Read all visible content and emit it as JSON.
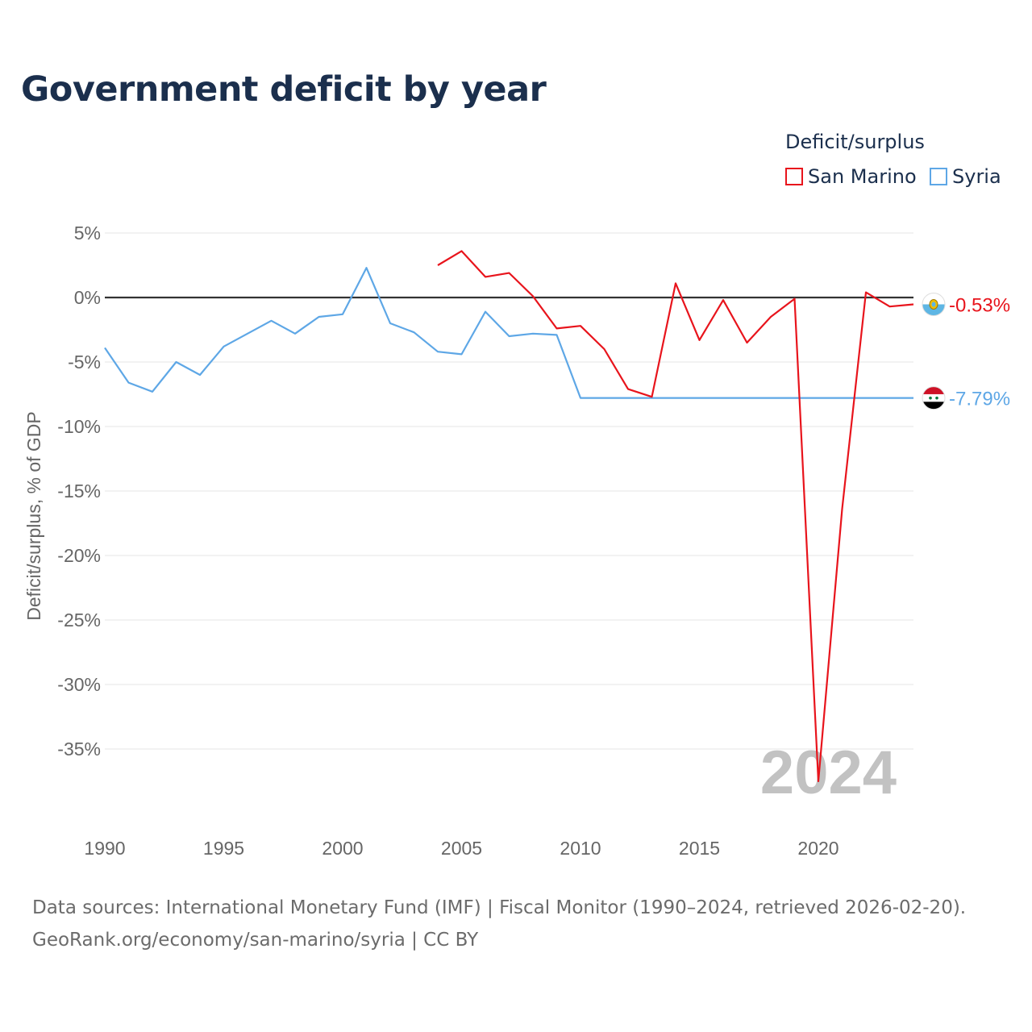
{
  "chart_data": {
    "type": "line",
    "title": "Government deficit by year",
    "ylabel": "Deficit/surplus, % of GDP",
    "xlabel": "",
    "xlim": [
      1990,
      2024
    ],
    "ylim": [
      -40,
      5
    ],
    "x_ticks": [
      1990,
      1995,
      2000,
      2005,
      2010,
      2015,
      2020
    ],
    "x_tick_labels": [
      "1990",
      "1995",
      "2000",
      "2005",
      "2010",
      "2015",
      "2020"
    ],
    "y_ticks": [
      5,
      0,
      -5,
      -10,
      -15,
      -20,
      -25,
      -30,
      -35
    ],
    "y_tick_labels": [
      "5%",
      "0%",
      "-5%",
      "-10%",
      "-15%",
      "-20%",
      "-25%",
      "-30%",
      "-35%"
    ],
    "legend_title": "Deficit/surplus",
    "legend_position": "top-right",
    "year_watermark": "2024",
    "series": [
      {
        "name": "San Marino",
        "color": "#e8141c",
        "end_label": "-0.53%",
        "flag": "san-marino-flag",
        "points": [
          [
            2004,
            2.5
          ],
          [
            2005,
            3.6
          ],
          [
            2006,
            1.6
          ],
          [
            2007,
            1.9
          ],
          [
            2008,
            0.1
          ],
          [
            2009,
            -2.4
          ],
          [
            2010,
            -2.2
          ],
          [
            2011,
            -4.0
          ],
          [
            2012,
            -7.1
          ],
          [
            2013,
            -7.7
          ],
          [
            2014,
            1.1
          ],
          [
            2015,
            -3.3
          ],
          [
            2016,
            -0.2
          ],
          [
            2017,
            -3.5
          ],
          [
            2018,
            -1.5
          ],
          [
            2019,
            -0.1
          ],
          [
            2020,
            -37.5
          ],
          [
            2021,
            -16.4
          ],
          [
            2022,
            0.4
          ],
          [
            2023,
            -0.7
          ],
          [
            2024,
            -0.53
          ]
        ]
      },
      {
        "name": "Syria",
        "color": "#5ea7e6",
        "end_label": "-7.79%",
        "flag": "syria-flag",
        "points": [
          [
            1990,
            -3.9
          ],
          [
            1991,
            -6.6
          ],
          [
            1992,
            -7.3
          ],
          [
            1993,
            -5.0
          ],
          [
            1994,
            -6.0
          ],
          [
            1995,
            -3.8
          ],
          [
            1996,
            -2.8
          ],
          [
            1997,
            -1.8
          ],
          [
            1998,
            -2.8
          ],
          [
            1999,
            -1.5
          ],
          [
            2000,
            -1.3
          ],
          [
            2001,
            2.3
          ],
          [
            2002,
            -2.0
          ],
          [
            2003,
            -2.7
          ],
          [
            2004,
            -4.2
          ],
          [
            2005,
            -4.4
          ],
          [
            2006,
            -1.1
          ],
          [
            2007,
            -3.0
          ],
          [
            2008,
            -2.8
          ],
          [
            2009,
            -2.9
          ],
          [
            2010,
            -7.79
          ],
          [
            2011,
            -7.79
          ],
          [
            2012,
            -7.79
          ],
          [
            2013,
            -7.79
          ],
          [
            2014,
            -7.79
          ],
          [
            2015,
            -7.79
          ],
          [
            2016,
            -7.79
          ],
          [
            2017,
            -7.79
          ],
          [
            2018,
            -7.79
          ],
          [
            2019,
            -7.79
          ],
          [
            2020,
            -7.79
          ],
          [
            2021,
            -7.79
          ],
          [
            2022,
            -7.79
          ],
          [
            2023,
            -7.79
          ],
          [
            2024,
            -7.79
          ]
        ]
      }
    ]
  },
  "source": {
    "line1": "Data sources: International Monetary Fund (IMF) | Fiscal Monitor (1990–2024, retrieved 2026-02-20).",
    "line2": "GeoRank.org/economy/san-marino/syria | CC BY"
  }
}
